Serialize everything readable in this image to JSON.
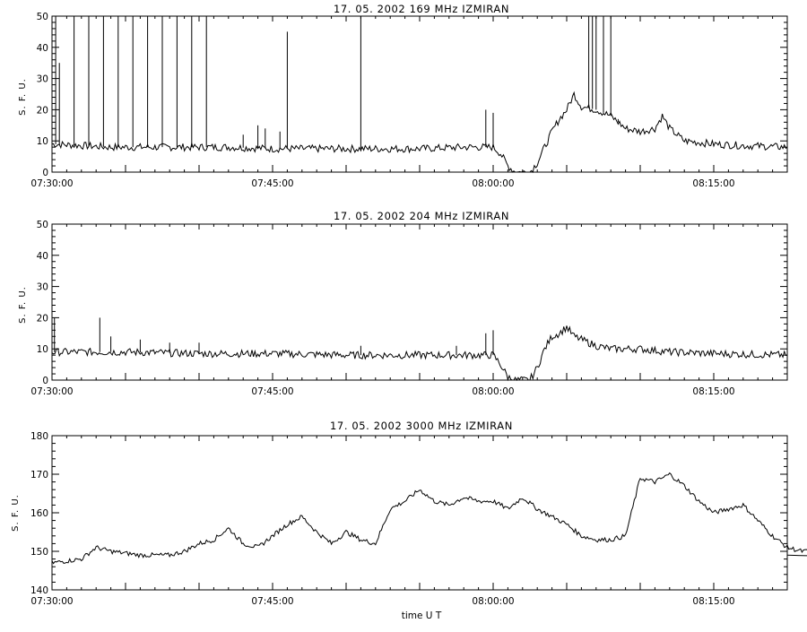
{
  "xlabel": "time  U T",
  "chart_data": [
    {
      "type": "line",
      "title": "17.  05.  2002    169 MHz    IZMIRAN",
      "ylabel": "S. F. U.",
      "xlim": [
        "07:30:00",
        "08:20:00"
      ],
      "ylim": [
        0,
        50
      ],
      "yticks": [
        0,
        10,
        20,
        30,
        40,
        50
      ],
      "xtick_labels": [
        "07:30:00",
        "07:45:00",
        "08:00:00",
        "08:15:00"
      ],
      "series": [
        {
          "baseline": [
            [
              "07:30:00",
              9
            ],
            [
              "07:34:00",
              8
            ],
            [
              "07:38:00",
              8
            ],
            [
              "07:42:00",
              8
            ],
            [
              "07:45:00",
              7.5
            ],
            [
              "07:50:00",
              7.5
            ],
            [
              "07:55:00",
              7.5
            ],
            [
              "07:58:00",
              8
            ],
            [
              "08:00:00",
              8
            ],
            [
              "08:00:30",
              6
            ],
            [
              "08:01:00",
              2
            ],
            [
              "08:01:30",
              0
            ],
            [
              "08:02:30",
              0
            ],
            [
              "08:03:00",
              3
            ],
            [
              "08:03:30",
              8
            ],
            [
              "08:04:00",
              13
            ],
            [
              "08:04:30",
              17
            ],
            [
              "08:05:00",
              20
            ],
            [
              "08:05:30",
              25
            ],
            [
              "08:06:00",
              21
            ],
            [
              "08:07:00",
              20
            ],
            [
              "08:08:00",
              18
            ],
            [
              "08:09:00",
              14
            ],
            [
              "08:10:00",
              13
            ],
            [
              "08:11:00",
              14
            ],
            [
              "08:11:30",
              18
            ],
            [
              "08:12:00",
              14
            ],
            [
              "08:13:00",
              10
            ],
            [
              "08:15:00",
              9
            ],
            [
              "08:17:00",
              8.5
            ],
            [
              "08:20:00",
              8
            ]
          ],
          "spikes": [
            [
              "07:30:15",
              50
            ],
            [
              "07:30:30",
              35
            ],
            [
              "07:31:30",
              50
            ],
            [
              "07:32:30",
              50
            ],
            [
              "07:33:30",
              50
            ],
            [
              "07:34:30",
              50
            ],
            [
              "07:35:30",
              50
            ],
            [
              "07:36:30",
              50
            ],
            [
              "07:37:30",
              50
            ],
            [
              "07:38:30",
              50
            ],
            [
              "07:39:30",
              50
            ],
            [
              "07:40:30",
              50
            ],
            [
              "07:43:00",
              12
            ],
            [
              "07:44:00",
              15
            ],
            [
              "07:44:30",
              14
            ],
            [
              "07:45:30",
              13
            ],
            [
              "07:46:00",
              45
            ],
            [
              "07:51:00",
              50
            ],
            [
              "07:59:30",
              20
            ],
            [
              "08:00:00",
              19
            ],
            [
              "08:06:30",
              50
            ],
            [
              "08:06:45",
              50
            ],
            [
              "08:07:00",
              50
            ],
            [
              "08:07:30",
              50
            ],
            [
              "08:08:00",
              50
            ],
            [
              "08:08:30",
              17
            ]
          ]
        }
      ]
    },
    {
      "type": "line",
      "title": "17.  05.  2002    204 MHz    IZMIRAN",
      "ylabel": "S. F. U.",
      "xlim": [
        "07:30:00",
        "08:20:00"
      ],
      "ylim": [
        0,
        50
      ],
      "yticks": [
        0,
        10,
        20,
        30,
        40,
        50
      ],
      "xtick_labels": [
        "07:30:00",
        "07:45:00",
        "08:00:00",
        "08:15:00"
      ],
      "series": [
        {
          "baseline": [
            [
              "07:30:00",
              9
            ],
            [
              "07:35:00",
              9
            ],
            [
              "07:40:00",
              8.5
            ],
            [
              "07:45:00",
              8.5
            ],
            [
              "07:50:00",
              8
            ],
            [
              "07:55:00",
              8
            ],
            [
              "07:58:00",
              8
            ],
            [
              "08:00:00",
              8
            ],
            [
              "08:00:30",
              5
            ],
            [
              "08:01:00",
              1
            ],
            [
              "08:01:30",
              0
            ],
            [
              "08:02:30",
              0
            ],
            [
              "08:03:00",
              4
            ],
            [
              "08:03:30",
              10
            ],
            [
              "08:04:00",
              14
            ],
            [
              "08:04:30",
              15
            ],
            [
              "08:05:00",
              17
            ],
            [
              "08:05:30",
              14
            ],
            [
              "08:06:00",
              13
            ],
            [
              "08:07:00",
              11
            ],
            [
              "08:08:00",
              10
            ],
            [
              "08:10:00",
              10
            ],
            [
              "08:12:00",
              9
            ],
            [
              "08:15:00",
              8.5
            ],
            [
              "08:20:00",
              8
            ]
          ],
          "spikes": [
            [
              "07:30:10",
              20
            ],
            [
              "07:33:15",
              20
            ],
            [
              "07:34:00",
              14
            ],
            [
              "07:36:00",
              13
            ],
            [
              "07:38:00",
              12
            ],
            [
              "07:40:00",
              12
            ],
            [
              "07:51:00",
              11
            ],
            [
              "07:57:30",
              11
            ],
            [
              "07:59:30",
              15
            ],
            [
              "08:00:00",
              16
            ]
          ]
        }
      ]
    },
    {
      "type": "line",
      "title": "17.  05.  2002    3000 MHz    IZMIRAN",
      "ylabel": "S. F. U.",
      "xlim": [
        "07:30:00",
        "08:20:00"
      ],
      "ylim": [
        140,
        180
      ],
      "yticks": [
        140,
        150,
        160,
        170,
        180
      ],
      "xtick_labels": [
        "07:30:00",
        "07:45:00",
        "08:00:00",
        "08:15:00"
      ],
      "series": [
        {
          "baseline": [
            [
              "07:30:00",
              147
            ],
            [
              "07:32:00",
              148
            ],
            [
              "07:33:00",
              151
            ],
            [
              "07:34:00",
              150
            ],
            [
              "07:36:00",
              149
            ],
            [
              "07:38:00",
              149
            ],
            [
              "07:39:00",
              150
            ],
            [
              "07:40:00",
              152
            ],
            [
              "07:41:00",
              153
            ],
            [
              "07:42:00",
              156
            ],
            [
              "07:43:00",
              152
            ],
            [
              "07:44:00",
              151
            ],
            [
              "07:45:00",
              154
            ],
            [
              "07:46:00",
              157
            ],
            [
              "07:47:00",
              159
            ],
            [
              "07:48:00",
              155
            ],
            [
              "07:49:00",
              152
            ],
            [
              "07:50:00",
              155
            ],
            [
              "07:51:00",
              153
            ],
            [
              "07:52:00",
              152
            ],
            [
              "07:53:00",
              161
            ],
            [
              "07:54:00",
              163
            ],
            [
              "07:55:00",
              166
            ],
            [
              "07:56:00",
              163
            ],
            [
              "07:57:00",
              162
            ],
            [
              "07:58:00",
              164
            ],
            [
              "07:59:00",
              163
            ],
            [
              "08:00:00",
              163
            ],
            [
              "08:01:00",
              161
            ],
            [
              "08:02:00",
              164
            ],
            [
              "08:03:00",
              161
            ],
            [
              "08:04:00",
              159
            ],
            [
              "08:05:00",
              157
            ],
            [
              "08:06:00",
              154
            ],
            [
              "08:07:00",
              153
            ],
            [
              "08:08:00",
              153
            ],
            [
              "08:09:00",
              154
            ],
            [
              "08:10:00",
              169
            ],
            [
              "08:11:00",
              168
            ],
            [
              "08:12:00",
              170
            ],
            [
              "08:13:00",
              167
            ],
            [
              "08:14:00",
              163
            ],
            [
              "08:15:00",
              160
            ],
            [
              "08:16:00",
              161
            ],
            [
              "08:17:00",
              162
            ],
            [
              "08:18:00",
              158
            ],
            [
              "08:19:00",
              154
            ],
            [
              "08:20:00",
              151
            ],
            [
              "08:21:00",
              150
            ],
            [
              "08:22:00",
              150
            ],
            [
              "08:23:00",
              150
            ],
            [
              "08:24:00",
              149
            ]
          ],
          "spikes": []
        }
      ]
    }
  ]
}
